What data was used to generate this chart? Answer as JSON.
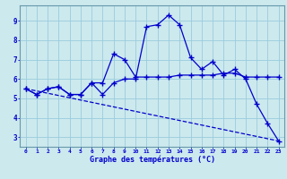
{
  "x": [
    0,
    1,
    2,
    3,
    4,
    5,
    6,
    7,
    8,
    9,
    10,
    11,
    12,
    13,
    14,
    15,
    16,
    17,
    18,
    19,
    20,
    21,
    22,
    23
  ],
  "line1": [
    5.5,
    5.2,
    5.5,
    5.6,
    5.2,
    5.2,
    5.8,
    5.2,
    5.8,
    6.0,
    6.0,
    8.7,
    8.8,
    9.3,
    8.8,
    7.1,
    6.5,
    6.9,
    6.2,
    6.5,
    6.0,
    4.7,
    3.7,
    2.8
  ],
  "line2": [
    5.5,
    5.2,
    5.5,
    5.6,
    5.2,
    5.2,
    5.8,
    5.8,
    7.3,
    7.0,
    6.1,
    6.1,
    6.1,
    6.1,
    6.2,
    6.2,
    6.2,
    6.2,
    6.3,
    6.3,
    6.1,
    6.1,
    6.1,
    6.1
  ],
  "line3_start_x": 0,
  "line3_start_y": 5.5,
  "line3_end_x": 23,
  "line3_end_y": 2.8,
  "background_color": "#cce9ee",
  "grid_color": "#99ccdd",
  "line_color": "#0000cc",
  "xlabel": "Graphe des températures (°C)",
  "xlim": [
    -0.5,
    23.5
  ],
  "ylim": [
    2.5,
    9.8
  ],
  "yticks": [
    3,
    4,
    5,
    6,
    7,
    8,
    9
  ],
  "xticks": [
    0,
    1,
    2,
    3,
    4,
    5,
    6,
    7,
    8,
    9,
    10,
    11,
    12,
    13,
    14,
    15,
    16,
    17,
    18,
    19,
    20,
    21,
    22,
    23
  ]
}
